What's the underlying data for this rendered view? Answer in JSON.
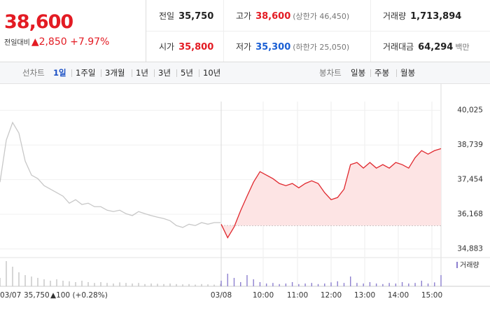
{
  "header": {
    "price": "38,600",
    "change_label": "전일대비",
    "change": "▲2,850",
    "change_rate": "+7.97%"
  },
  "stats": [
    [
      {
        "label": "전일",
        "value": "35,750",
        "color": "#222222"
      },
      {
        "label": "고가",
        "value": "38,600",
        "note": "(상한가 46,450)",
        "color": "#e31b23"
      },
      {
        "label": "거래량",
        "value": "1,713,894",
        "color": "#222222"
      }
    ],
    [
      {
        "label": "시가",
        "value": "35,800",
        "color": "#e31b23"
      },
      {
        "label": "저가",
        "value": "35,300",
        "note": "(하한가 25,050)",
        "color": "#1a5fd4"
      },
      {
        "label": "거래대금",
        "value": "64,294",
        "note": "백만",
        "color": "#222222"
      }
    ]
  ],
  "tabs": {
    "line_label": "선차트",
    "line_periods": [
      "1일",
      "1주일",
      "3개월",
      "1년",
      "3년",
      "5년",
      "10년"
    ],
    "selected": 0,
    "candle_label": "봉차트",
    "candle_periods": [
      "일봉",
      "주봉",
      "월봉"
    ]
  },
  "chart_data": {
    "type": "line",
    "ylim": [
      34640,
      40480
    ],
    "yticks": [
      {
        "value": 40025,
        "label": "40,025"
      },
      {
        "value": 38739,
        "label": "38,739"
      },
      {
        "value": 37454,
        "label": "37,454"
      },
      {
        "value": 36168,
        "label": "36,168"
      },
      {
        "value": 34883,
        "label": "34,883"
      }
    ],
    "baseline": 35750,
    "x_labels": [
      "03/07",
      "03/08",
      "10:00",
      "11:00",
      "12:00",
      "13:00",
      "14:00",
      "15:00"
    ],
    "series": [
      {
        "color": "#c8c8c8",
        "values": [
          37360,
          38920,
          39570,
          39180,
          38140,
          37620,
          37490,
          37230,
          37100,
          36970,
          36840,
          36580,
          36710,
          36530,
          36580,
          36450,
          36450,
          36320,
          36270,
          36320,
          36190,
          36120,
          36270,
          36190,
          36120,
          36060,
          36010,
          35930,
          35750,
          35680,
          35800,
          35750,
          35860,
          35800,
          35860,
          35860
        ]
      },
      {
        "color": "#e0282e",
        "fill": "#fde4e4",
        "values": [
          35800,
          35300,
          35700,
          36300,
          36840,
          37360,
          37750,
          37620,
          37490,
          37310,
          37230,
          37310,
          37150,
          37310,
          37410,
          37310,
          36970,
          36710,
          36790,
          37100,
          38010,
          38090,
          37880,
          38090,
          37880,
          38010,
          37880,
          38090,
          38010,
          37880,
          38270,
          38530,
          38400,
          38530,
          38600
        ]
      }
    ],
    "volume": {
      "name": "거래량",
      "series": [
        {
          "color": "#c4c4c4",
          "values": [
            30,
            90,
            70,
            50,
            40,
            35,
            30,
            25,
            20,
            25,
            20,
            18,
            15,
            20,
            15,
            12,
            15,
            12,
            10,
            14,
            12,
            10,
            12,
            8,
            10,
            9,
            8,
            10,
            8,
            7,
            8,
            6,
            8,
            7,
            6,
            9
          ]
        },
        {
          "color": "#8c7fcf",
          "values": [
            20,
            45,
            30,
            15,
            40,
            25,
            15,
            10,
            12,
            8,
            10,
            15,
            8,
            10,
            12,
            8,
            10,
            14,
            18,
            12,
            35,
            12,
            10,
            15,
            10,
            8,
            12,
            10,
            15,
            10,
            12,
            20,
            10,
            14,
            40
          ]
        }
      ]
    },
    "footer": {
      "price": "35,750",
      "change": "▲100 (+0.28%)"
    }
  }
}
